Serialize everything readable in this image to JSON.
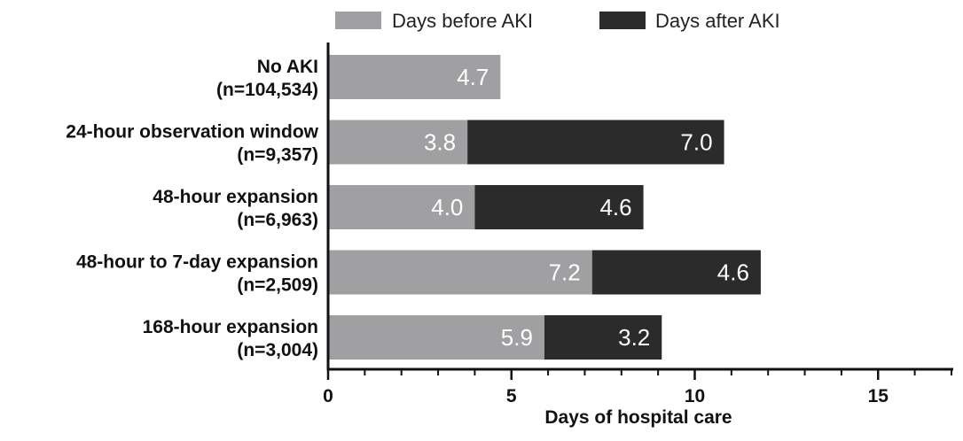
{
  "chart_data": {
    "type": "bar",
    "orientation": "horizontal",
    "stacked": true,
    "title": "",
    "xlabel": "Days of hospital care",
    "ylabel": "",
    "xlim": [
      0,
      17
    ],
    "xticks": [
      0,
      5,
      10,
      15
    ],
    "minor_tick_step": 1,
    "grid": false,
    "legend_position": "top",
    "categories": [
      {
        "line1": "No AKI",
        "line2": "(n=104,534)"
      },
      {
        "line1": "24-hour observation window",
        "line2": "(n=9,357)"
      },
      {
        "line1": "48-hour expansion",
        "line2": "(n=6,963)"
      },
      {
        "line1": "48-hour to 7-day expansion",
        "line2": "(n=2,509)"
      },
      {
        "line1": "168-hour expansion",
        "line2": "(n=3,004)"
      }
    ],
    "series": [
      {
        "name": "Days before AKI",
        "color": "#a0a0a2",
        "values": [
          4.7,
          3.8,
          4.0,
          7.2,
          5.9
        ],
        "labels": [
          "4.7",
          "3.8",
          "4.0",
          "7.2",
          "5.9"
        ]
      },
      {
        "name": "Days after AKI",
        "color": "#2b2b2b",
        "values": [
          0,
          7.0,
          4.6,
          4.6,
          3.2
        ],
        "labels": [
          "",
          "7.0",
          "4.6",
          "4.6",
          "3.2"
        ]
      }
    ]
  }
}
